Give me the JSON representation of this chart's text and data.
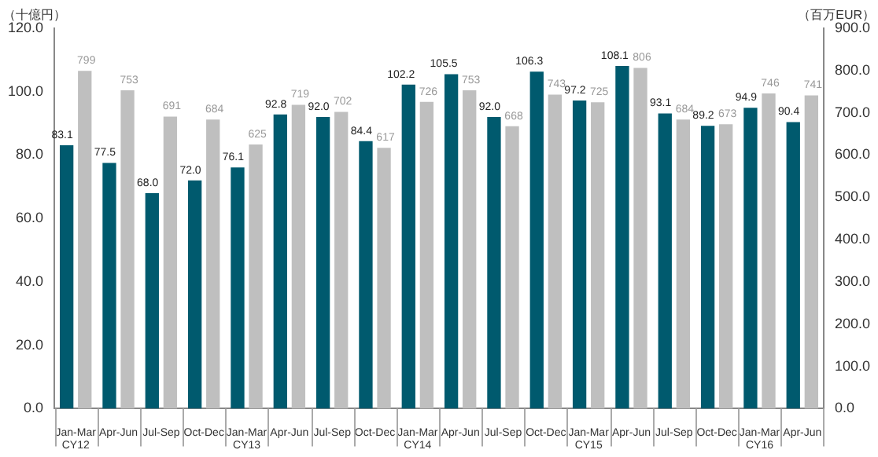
{
  "chart_data": {
    "type": "bar",
    "ylabel": "（十億円）",
    "y2label": "（百万EUR）",
    "categories": [
      "Jan-Mar\nCY12",
      "Apr-Jun",
      "Jul-Sep",
      "Oct-Dec",
      "Jan-Mar\nCY13",
      "Apr-Jun",
      "Jul-Sep",
      "Oct-Dec",
      "Jan-Mar\nCY14",
      "Apr-Jun",
      "Jul-Sep",
      "Oct-Dec",
      "Jan-Mar\nCY15",
      "Apr-Jun",
      "Jul-Sep",
      "Oct-Dec",
      "Jan-Mar\nCY16",
      "Apr-Jun"
    ],
    "series": [
      {
        "color": "#005a6e",
        "values": [
          83.1,
          77.5,
          68.0,
          72.0,
          76.1,
          92.8,
          92.0,
          84.4,
          102.2,
          105.5,
          92.0,
          106.3,
          97.2,
          108.1,
          93.1,
          89.2,
          94.9,
          90.4
        ],
        "value_labels": [
          "83.1",
          "77.5",
          "68.0",
          "72.0",
          "76.1",
          "92.8",
          "92.0",
          "84.4",
          "102.2",
          "105.5",
          "92.0",
          "106.3",
          "97.2",
          "108.1",
          "93.1",
          "89.2",
          "94.9",
          "90.4"
        ]
      },
      {
        "color": "#bfbfbf",
        "axis": "y2",
        "values": [
          799,
          753,
          691,
          684,
          625,
          719,
          702,
          617,
          726,
          753,
          668,
          743,
          725,
          806,
          684,
          673,
          746,
          741
        ],
        "value_labels": [
          "799",
          "753",
          "691",
          "684",
          "625",
          "719",
          "702",
          "617",
          "726",
          "753",
          "668",
          "743",
          "725",
          "806",
          "684",
          "673",
          "746",
          "741"
        ]
      }
    ],
    "ylim": [
      0,
      120
    ],
    "yticks": [
      {
        "value": 0,
        "label": "0.0"
      },
      {
        "value": 20,
        "label": "20.0"
      },
      {
        "value": 40,
        "label": "40.0"
      },
      {
        "value": 60,
        "label": "60.0"
      },
      {
        "value": 80,
        "label": "80.0"
      },
      {
        "value": 100,
        "label": "100.0"
      },
      {
        "value": 120,
        "label": "120.0"
      }
    ],
    "y2lim": [
      0,
      900
    ],
    "y2ticks": [
      {
        "value": 0,
        "label": "0.0"
      },
      {
        "value": 100,
        "label": "100.0"
      },
      {
        "value": 200,
        "label": "200.0"
      },
      {
        "value": 300,
        "label": "300.0"
      },
      {
        "value": 400,
        "label": "400.0"
      },
      {
        "value": 500,
        "label": "500.0"
      },
      {
        "value": 600,
        "label": "600.0"
      },
      {
        "value": 700,
        "label": "700.0"
      },
      {
        "value": 800,
        "label": "800.0"
      },
      {
        "value": 900,
        "label": "900.0"
      }
    ],
    "grid": false,
    "legend": false
  }
}
